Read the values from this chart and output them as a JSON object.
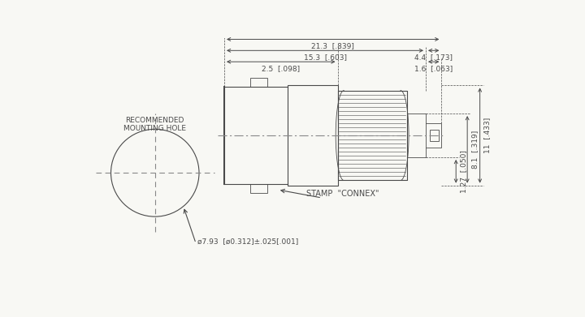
{
  "bg_color": "#f8f8f4",
  "line_color": "#4a4a4a",
  "dim_color": "#4a4a4a",
  "cl_color": "#888888",
  "font_size": 7.0,
  "annotations": {
    "hole_dim": "ø7.93  [ø0.312]±.025[.001]",
    "stamp": "STAMP  \"CONNEX\"",
    "rec_hole": "RECOMMENDED\nMOUNTING HOLE",
    "d1": "2.5  [.098]",
    "d2": "1.6  [.063]",
    "d3": "15.3  [.603]",
    "d4": "4.4  [.173]",
    "d5": "21.3  [.839]",
    "d6": "1.27  [.050]",
    "d7": "8.1  [.319]",
    "d8": "11  [.433]"
  }
}
